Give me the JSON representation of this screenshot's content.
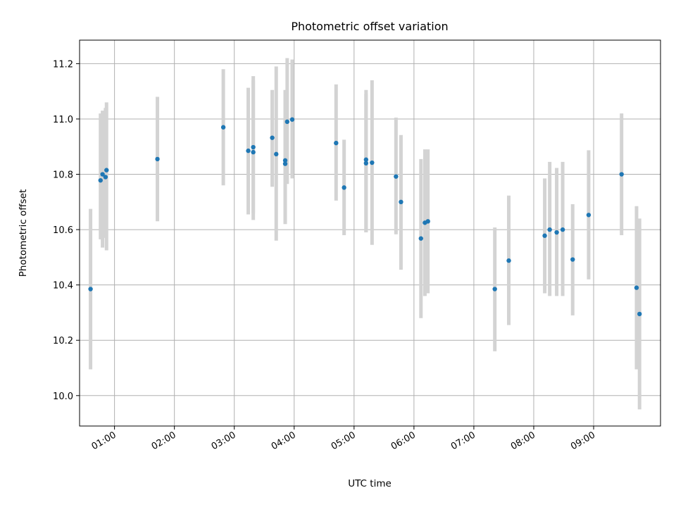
{
  "chart_data": {
    "type": "scatter",
    "title": "Photometric offset variation",
    "xlabel": "UTC time",
    "ylabel": "Photometric offset",
    "xlim": [
      "00:25",
      "10:07"
    ],
    "ylim": [
      9.89,
      11.285
    ],
    "grid": true,
    "x_ticks": [
      "01:00",
      "02:00",
      "03:00",
      "04:00",
      "05:00",
      "06:00",
      "07:00",
      "08:00",
      "09:00"
    ],
    "y_ticks": [
      "10.0",
      "10.2",
      "10.4",
      "10.6",
      "10.8",
      "11.0",
      "11.2"
    ],
    "colors": {
      "point": "#1f77b4",
      "errorbar": "#d3d3d3",
      "grid": "#b0b0b0"
    },
    "series": [
      {
        "x_times": [
          "00:36",
          "00:46",
          "00:48",
          "00:51",
          "00:52",
          "01:43",
          "02:49",
          "03:14",
          "03:19",
          "03:19",
          "03:38",
          "03:42",
          "03:51",
          "03:51",
          "03:53",
          "03:58",
          "04:42",
          "04:50",
          "05:12",
          "05:12",
          "05:18",
          "05:42",
          "05:47",
          "06:07",
          "06:11",
          "06:14",
          "07:21",
          "07:35",
          "08:11",
          "08:16",
          "08:23",
          "08:29",
          "08:39",
          "08:55",
          "09:28",
          "09:43",
          "09:46"
        ],
        "y": [
          10.385,
          10.778,
          10.8,
          10.79,
          10.815,
          10.855,
          10.97,
          10.885,
          10.898,
          10.88,
          10.932,
          10.873,
          10.85,
          10.838,
          10.99,
          10.998,
          10.913,
          10.752,
          10.853,
          10.84,
          10.842,
          10.792,
          10.7,
          10.568,
          10.625,
          10.63,
          10.385,
          10.488,
          10.578,
          10.6,
          10.59,
          10.6,
          10.492,
          10.653,
          10.8,
          10.39,
          10.295
        ],
        "err_low": [
          10.095,
          10.565,
          10.535,
          10.57,
          10.525,
          10.63,
          10.76,
          10.655,
          10.66,
          10.635,
          10.755,
          10.56,
          10.755,
          10.62,
          10.765,
          10.785,
          10.705,
          10.58,
          10.59,
          10.59,
          10.545,
          10.583,
          10.455,
          10.28,
          10.36,
          10.37,
          10.16,
          10.255,
          10.37,
          10.36,
          10.36,
          10.36,
          10.29,
          10.42,
          10.58,
          10.095,
          9.95
        ],
        "err_high": [
          10.675,
          11.02,
          11.03,
          11.04,
          11.06,
          11.08,
          11.18,
          11.113,
          11.14,
          11.155,
          11.105,
          11.19,
          11.105,
          11.075,
          11.22,
          11.215,
          11.125,
          10.925,
          11.105,
          11.09,
          11.14,
          11.005,
          10.942,
          10.855,
          10.89,
          10.89,
          10.608,
          10.723,
          10.785,
          10.845,
          10.823,
          10.845,
          10.692,
          10.887,
          11.02,
          10.685,
          10.64
        ]
      }
    ]
  }
}
